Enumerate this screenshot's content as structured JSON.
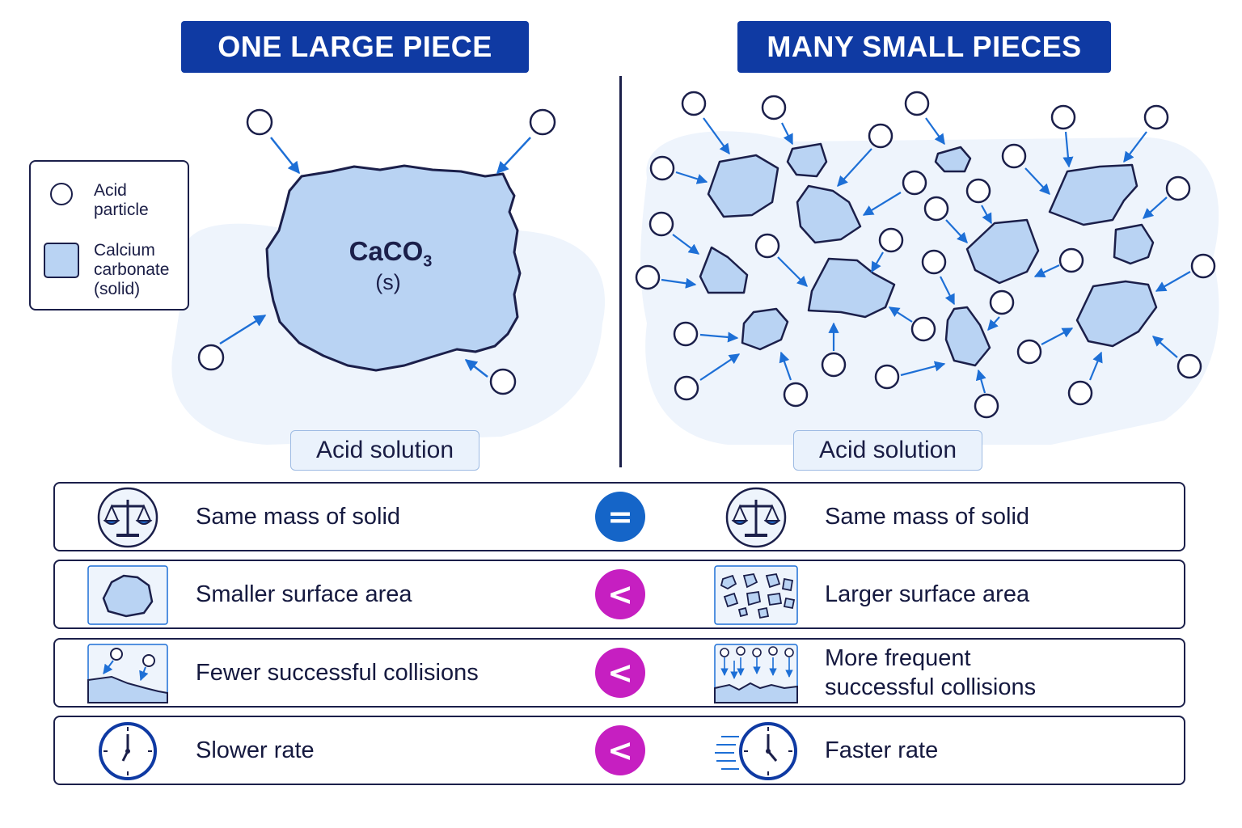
{
  "titles": {
    "left": "ONE LARGE PIECE",
    "right": "MANY SMALL PIECES"
  },
  "legend": {
    "acid_label_1": "Acid",
    "acid_label_2": "particle",
    "solid_label_1": "Calcium",
    "solid_label_2": "carbonate",
    "solid_label_3": "(solid)"
  },
  "solid": {
    "formula_main": "CaCO",
    "formula_sub": "3",
    "state": "(s)"
  },
  "solution_label_left": "Acid solution",
  "solution_label_right": "Acid solution",
  "comparison": [
    {
      "left": "Same mass of solid",
      "symbol": "=",
      "right": "Same mass of solid",
      "left_icon": "balance-scale-icon",
      "right_icon": "balance-scale-icon"
    },
    {
      "left": "Smaller surface area",
      "symbol": "<",
      "right": "Larger surface area",
      "left_icon": "single-lump-icon",
      "right_icon": "many-fragments-icon"
    },
    {
      "left": "Fewer successful collisions",
      "symbol": "<",
      "right": "More frequent",
      "right_2": "successful collisions",
      "left_icon": "few-collisions-icon",
      "right_icon": "many-collisions-icon"
    },
    {
      "left": "Slower rate",
      "symbol": "<",
      "right": "Faster rate",
      "left_icon": "clock-icon",
      "right_icon": "fast-clock-icon"
    }
  ],
  "colors": {
    "title_bg": "#0f3aa3",
    "solid_fill": "#b9d3f3",
    "arrow": "#1d6fd6",
    "equal_badge": "#1565c8",
    "less_badge": "#c61fc1",
    "outline": "#1b1f4a"
  }
}
